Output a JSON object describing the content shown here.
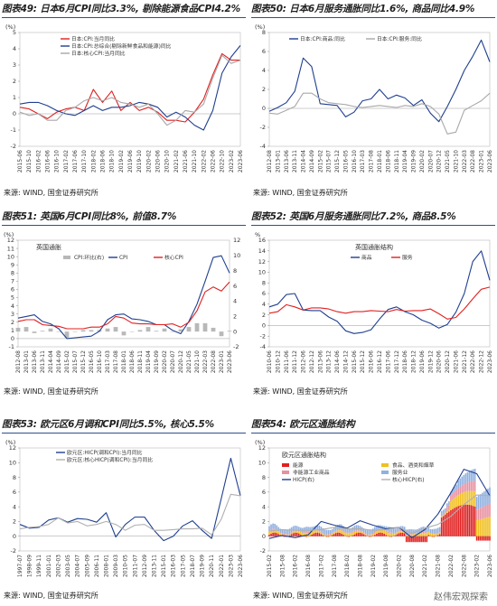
{
  "watermark": "赵伟宏观探索",
  "colors": {
    "blue": "#1f3f8f",
    "red": "#e02020",
    "gray": "#a8a8a8",
    "light": "#b0b0b0",
    "yellow": "#f0c020",
    "pink": "#e890a0",
    "paleblue": "#90b0e0"
  },
  "panels": [
    {
      "title": "图表49: 日本6月CPI同比3.3%, 剔除能源食品CPI4.2%",
      "source": "来源: WIND, 国金证券研究所",
      "chart_data": {
        "type": "line",
        "yunit": "(%)",
        "ylim": [
          -2,
          5
        ],
        "yticks": [
          -2,
          -1,
          0,
          1,
          2,
          3,
          4,
          5
        ],
        "xlabels": [
          "2015-06",
          "2015-10",
          "2016-02",
          "2016-06",
          "2016-10",
          "2017-02",
          "2017-06",
          "2017-10",
          "2018-02",
          "2018-06",
          "2018-10",
          "2019-02",
          "2019-06",
          "2019-10",
          "2020-02",
          "2020-06",
          "2020-10",
          "2021-02",
          "2021-06",
          "2021-10",
          "2022-02",
          "2022-06",
          "2022-10",
          "2023-02",
          "2023-06"
        ],
        "series": [
          {
            "name": "日本:CPI:当月同比",
            "color": "red",
            "values": [
              0.4,
              0.3,
              0.0,
              -0.3,
              0.1,
              0.3,
              0.4,
              0.2,
              1.5,
              0.7,
              1.4,
              0.2,
              0.7,
              0.2,
              0.4,
              0.1,
              -0.4,
              -0.4,
              -0.5,
              0.1,
              0.9,
              2.4,
              3.7,
              3.3,
              3.3
            ]
          },
          {
            "name": "日本:CPI:总综合(剔除新鲜食品和能源)同比",
            "color": "blue",
            "values": [
              0.6,
              0.7,
              0.7,
              0.5,
              0.2,
              0.0,
              -0.1,
              0.2,
              0.5,
              0.2,
              0.4,
              0.4,
              0.5,
              0.7,
              0.6,
              0.4,
              -0.2,
              0.1,
              -0.2,
              -0.7,
              -1.0,
              0.2,
              2.5,
              3.5,
              4.2
            ]
          },
          {
            "name": "日本:核心CPI:当月同比",
            "color": "gray",
            "values": [
              0.1,
              -0.1,
              0.0,
              -0.4,
              -0.4,
              0.2,
              0.4,
              0.8,
              1.0,
              0.8,
              1.0,
              0.7,
              0.6,
              0.4,
              0.6,
              0.0,
              -0.7,
              -0.4,
              0.2,
              0.1,
              0.6,
              2.2,
              3.6,
              3.1,
              3.3
            ]
          }
        ]
      }
    },
    {
      "title": "图表50: 日本6月服务通胀同比1.6%, 商品同比4.9%",
      "source": "来源: WIND, 国金证券研究所",
      "chart_data": {
        "type": "line",
        "yunit": "(%)",
        "ylim": [
          -4,
          8
        ],
        "yticks": [
          -4,
          -2,
          0,
          2,
          4,
          6,
          8
        ],
        "xlabels": [
          "2012-08",
          "2013-01",
          "2013-06",
          "2013-11",
          "2014-04",
          "2014-09",
          "2015-02",
          "2015-07",
          "2015-12",
          "2016-05",
          "2016-10",
          "2017-03",
          "2017-08",
          "2018-01",
          "2018-06",
          "2018-11",
          "2019-04",
          "2019-09",
          "2020-02",
          "2020-07",
          "2020-12",
          "2021-05",
          "2021-10",
          "2022-03",
          "2022-08",
          "2023-01",
          "2023-06"
        ],
        "series": [
          {
            "name": "日本:CPI:商品:同比",
            "color": "blue",
            "values": [
              -0.3,
              0.1,
              0.6,
              1.8,
              5.3,
              4.4,
              0.5,
              0.4,
              0.3,
              -0.9,
              -0.4,
              0.8,
              1.0,
              2.0,
              1.0,
              1.4,
              1.1,
              0.3,
              0.9,
              -0.5,
              -1.4,
              0.2,
              2.0,
              4.0,
              5.5,
              7.2,
              4.9
            ]
          },
          {
            "name": "日本:CPI:服务:同比",
            "color": "gray",
            "values": [
              -0.5,
              -0.6,
              -0.2,
              0.2,
              1.6,
              1.6,
              1.0,
              0.6,
              0.5,
              0.4,
              0.2,
              0.1,
              0.2,
              0.3,
              0.2,
              0.1,
              0.3,
              0.2,
              0.5,
              0.2,
              -0.6,
              -2.7,
              -2.5,
              -0.2,
              0.3,
              0.8,
              1.6
            ]
          }
        ]
      }
    },
    {
      "title": "图表51: 英国6月CPI同比8%, 前值8.7%",
      "source": "来源: WIND, 国金证券研究所",
      "chart_data": {
        "type": "line",
        "inner_title": "英国通胀",
        "yunit": "(%)",
        "ylim": [
          -1,
          12
        ],
        "yticks": [
          -1,
          0,
          1,
          2,
          3,
          4,
          5,
          6,
          7,
          8,
          9,
          10,
          11,
          12
        ],
        "y2lim": [
          -2,
          12
        ],
        "y2ticks": [
          -2,
          0,
          2,
          4,
          6,
          8,
          10,
          12
        ],
        "xlabels": [
          "2012-08",
          "2013-01",
          "2013-06",
          "2013-11",
          "2014-04",
          "2014-09",
          "2015-02",
          "2015-07",
          "2015-12",
          "2016-05",
          "2016-10",
          "2017-03",
          "2017-08",
          "2018-01",
          "2018-06",
          "2018-11",
          "2019-04",
          "2019-09",
          "2020-02",
          "2020-07",
          "2020-12",
          "2021-05",
          "2021-10",
          "2022-03",
          "2022-08",
          "2023-01",
          "2023-06"
        ],
        "series": [
          {
            "name": "CPI:环比(右)",
            "color": "gray",
            "kind": "bar",
            "values": [
              0.5,
              0.6,
              -0.2,
              0.1,
              0.4,
              0.0,
              -0.8,
              0.0,
              0.2,
              0.2,
              0.2,
              0.4,
              0.6,
              -0.5,
              0.0,
              0.2,
              0.6,
              0.1,
              0.4,
              0.0,
              0.3,
              0.6,
              1.1,
              1.1,
              0.5,
              -0.6,
              0.1
            ]
          },
          {
            "name": "CPI",
            "color": "blue",
            "values": [
              2.5,
              2.7,
              2.9,
              2.1,
              1.8,
              1.2,
              0.0,
              0.1,
              0.2,
              0.3,
              0.9,
              2.3,
              2.9,
              3.0,
              2.4,
              2.3,
              2.1,
              1.7,
              1.7,
              1.0,
              0.6,
              2.1,
              4.2,
              7.0,
              9.9,
              10.1,
              8.0
            ]
          },
          {
            "name": "核心CPI",
            "color": "red",
            "values": [
              2.1,
              2.3,
              2.3,
              1.7,
              1.6,
              1.5,
              1.2,
              1.2,
              1.2,
              1.4,
              1.4,
              1.8,
              2.7,
              2.5,
              1.9,
              1.8,
              1.8,
              1.7,
              1.7,
              1.8,
              1.4,
              2.0,
              3.4,
              5.7,
              6.3,
              5.8,
              6.9
            ]
          }
        ]
      }
    },
    {
      "title": "图表52: 英国6月服务通胀同比7.2%, 商品8.5%",
      "source": "来源: WIND, 国金证券研究所",
      "chart_data": {
        "type": "line",
        "inner_title": "英国通胀结构",
        "yunit": "%",
        "ylim": [
          -4,
          16
        ],
        "yticks": [
          -4,
          -2,
          0,
          2,
          4,
          6,
          8,
          10,
          12,
          14,
          16
        ],
        "xlabels": [
          "2010-06",
          "2010-12",
          "2011-06",
          "2011-12",
          "2012-06",
          "2012-12",
          "2013-06",
          "2013-12",
          "2014-06",
          "2014-12",
          "2015-06",
          "2015-12",
          "2016-06",
          "2016-12",
          "2017-06",
          "2017-12",
          "2018-06",
          "2018-12",
          "2019-06",
          "2019-12",
          "2020-06",
          "2020-12",
          "2021-06",
          "2021-12",
          "2022-06",
          "2022-12",
          "2023-06"
        ],
        "series": [
          {
            "name": "商品",
            "color": "blue",
            "values": [
              3.5,
              4.0,
              5.8,
              6.0,
              2.9,
              2.8,
              2.8,
              1.6,
              0.8,
              -1.0,
              -1.5,
              -1.3,
              -0.8,
              1.2,
              3.0,
              3.5,
              2.6,
              2.0,
              1.0,
              0.4,
              -0.5,
              0.2,
              2.5,
              6.0,
              12.0,
              14.0,
              8.5
            ]
          },
          {
            "name": "服务",
            "color": "red",
            "values": [
              2.3,
              2.6,
              3.9,
              3.5,
              2.9,
              3.3,
              3.3,
              3.1,
              2.6,
              2.3,
              2.6,
              2.6,
              2.8,
              2.7,
              2.6,
              3.0,
              2.7,
              2.8,
              2.8,
              3.1,
              2.2,
              1.2,
              1.5,
              3.1,
              5.0,
              6.8,
              7.2
            ]
          }
        ]
      }
    },
    {
      "title": "图表53: 欧元区6月调和CPI同比5.5%, 核心5.5%",
      "source": "来源: WIND, 国金证券研究所",
      "chart_data": {
        "type": "line",
        "yunit": "(%)",
        "ylim": [
          -2,
          12
        ],
        "yticks": [
          -2,
          0,
          2,
          4,
          6,
          8,
          10,
          12
        ],
        "xlabels": [
          "1997-07",
          "1998-09",
          "1999-11",
          "2001-01",
          "2002-03",
          "2003-05",
          "2004-07",
          "2005-09",
          "2006-11",
          "2008-01",
          "2009-03",
          "2010-05",
          "2011-07",
          "2012-09",
          "2013-11",
          "2015-01",
          "2016-03",
          "2017-05",
          "2018-07",
          "2019-09",
          "2020-11",
          "2022-01",
          "2023-03",
          "2023-06"
        ],
        "series": [
          {
            "name": "欧元区:HICP(调和CPI):当月同比",
            "color": "blue",
            "values": [
              1.6,
              1.1,
              1.2,
              2.2,
              2.5,
              1.9,
              2.4,
              2.3,
              1.9,
              3.2,
              -0.1,
              1.6,
              2.6,
              2.6,
              0.8,
              -0.6,
              0.0,
              1.4,
              2.1,
              0.8,
              -0.3,
              5.1,
              10.6,
              5.5
            ]
          },
          {
            "name": "欧元区:核心HICP(调和CPI):当月同比",
            "color": "light",
            "values": [
              1.0,
              1.2,
              1.3,
              1.6,
              2.5,
              1.8,
              2.0,
              1.4,
              1.6,
              2.0,
              1.6,
              0.8,
              1.5,
              1.6,
              0.8,
              0.8,
              0.9,
              1.0,
              1.0,
              1.1,
              0.2,
              2.3,
              5.7,
              5.5
            ]
          }
        ]
      }
    },
    {
      "title": "图表54: 欧元区通胀结构",
      "source": "来源: WIND, 国金证券研究所",
      "chart_data": {
        "type": "bar",
        "inner_title": "欧元区通胀结构",
        "yunit": "(%)",
        "ylim": [
          -2,
          12
        ],
        "yticks": [
          -2,
          0,
          2,
          4,
          6,
          8,
          10,
          12
        ],
        "xlabels": [
          "2015-02",
          "2015-08",
          "2016-02",
          "2016-08",
          "2017-02",
          "2017-08",
          "2018-02",
          "2018-08",
          "2019-02",
          "2019-08",
          "2020-02",
          "2020-08",
          "2021-02",
          "2021-08",
          "2022-02",
          "2022-08",
          "2023-02",
          "2023-06"
        ],
        "legend": [
          "能源",
          "食品、酒类和烟草",
          "非能源工业商品",
          "服务业",
          "HICP(右)",
          "核心HICP(右)"
        ],
        "series": [
          {
            "name": "HICP(右)",
            "color": "blue",
            "values": [
              -0.3,
              0.1,
              -0.2,
              0.2,
              2.0,
              1.5,
              1.1,
              2.1,
              1.5,
              1.0,
              1.2,
              -0.2,
              0.9,
              3.0,
              5.9,
              9.1,
              8.5,
              5.5
            ]
          },
          {
            "name": "核心HICP(右)",
            "color": "light",
            "values": [
              0.7,
              0.9,
              0.8,
              0.8,
              0.9,
              1.2,
              1.0,
              1.0,
              0.8,
              0.9,
              1.2,
              0.4,
              1.1,
              1.6,
              2.7,
              4.3,
              5.6,
              5.5
            ]
          }
        ]
      }
    }
  ]
}
